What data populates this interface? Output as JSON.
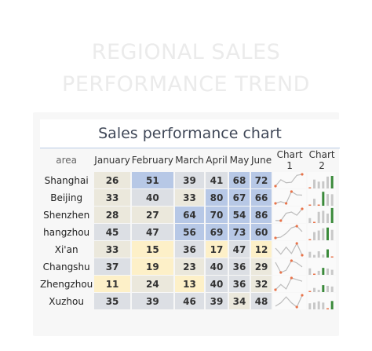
{
  "background_title": [
    "REGIONAL SALES",
    "PERFORMANCE TREND"
  ],
  "chart_title": "Sales performance chart",
  "columns": [
    "area",
    "January",
    "February",
    "March",
    "April",
    "May",
    "June",
    "Chart 1",
    "Chart 2"
  ],
  "colors": {
    "high": "#b7c8e6",
    "mid": "#dcdfe4",
    "low": "#fdf0c8",
    "mid_warm": "#ebe8dc",
    "spark_line": "#bcbcbc",
    "spark_marker": "#e8734a",
    "bar_normal": "#c8c8c8",
    "bar_max": "#3a8a3a",
    "bar_min": "#e8734a"
  },
  "chart_data": {
    "type": "table",
    "rows": [
      {
        "area": "Shanghai",
        "values": [
          26,
          51,
          39,
          41,
          68,
          72
        ]
      },
      {
        "area": "Beijing",
        "values": [
          33,
          40,
          33,
          80,
          67,
          66
        ]
      },
      {
        "area": "Shenzhen",
        "values": [
          28,
          27,
          64,
          70,
          54,
          86
        ]
      },
      {
        "area": "hangzhou",
        "values": [
          45,
          47,
          56,
          69,
          73,
          60
        ]
      },
      {
        "area": "Xi'an",
        "values": [
          33,
          15,
          36,
          17,
          47,
          12
        ]
      },
      {
        "area": "Changshu",
        "values": [
          37,
          19,
          23,
          40,
          36,
          29
        ]
      },
      {
        "area": "Zhengzhou",
        "values": [
          11,
          24,
          13,
          40,
          36,
          32
        ]
      },
      {
        "area": "Xuzhou",
        "values": [
          35,
          39,
          46,
          39,
          34,
          48
        ]
      }
    ]
  }
}
